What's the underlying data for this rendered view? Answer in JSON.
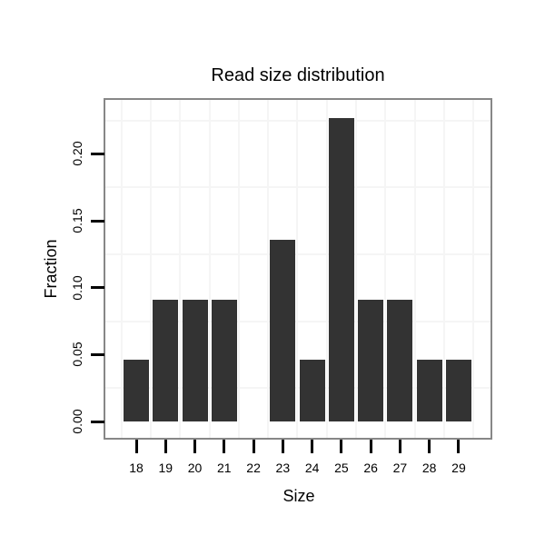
{
  "chart_data": {
    "type": "bar",
    "title": "Read size distribution",
    "xlabel": "Size",
    "ylabel": "Fraction",
    "categories": [
      "18",
      "19",
      "20",
      "21",
      "22",
      "23",
      "24",
      "25",
      "26",
      "27",
      "28",
      "29"
    ],
    "values": [
      0.046,
      0.091,
      0.091,
      0.091,
      0,
      0.136,
      0.046,
      0.227,
      0.091,
      0.091,
      0.046,
      0.046
    ],
    "ytick_values": [
      0.0,
      0.05,
      0.1,
      0.15,
      0.2
    ],
    "ytick_labels": [
      "0.00",
      "0.05",
      "0.10",
      "0.15",
      "0.20"
    ],
    "ylim": [
      -0.012,
      0.24
    ],
    "grid": "minor gridlines only, light gray, at 0.025 vertical steps and between categories",
    "legend": "none",
    "colors": {
      "bar": "#333333",
      "panel_border": "#878787",
      "gridline": "#f5f5f5",
      "tick": "#000000",
      "text": "#000000",
      "background": "#ffffff"
    }
  }
}
